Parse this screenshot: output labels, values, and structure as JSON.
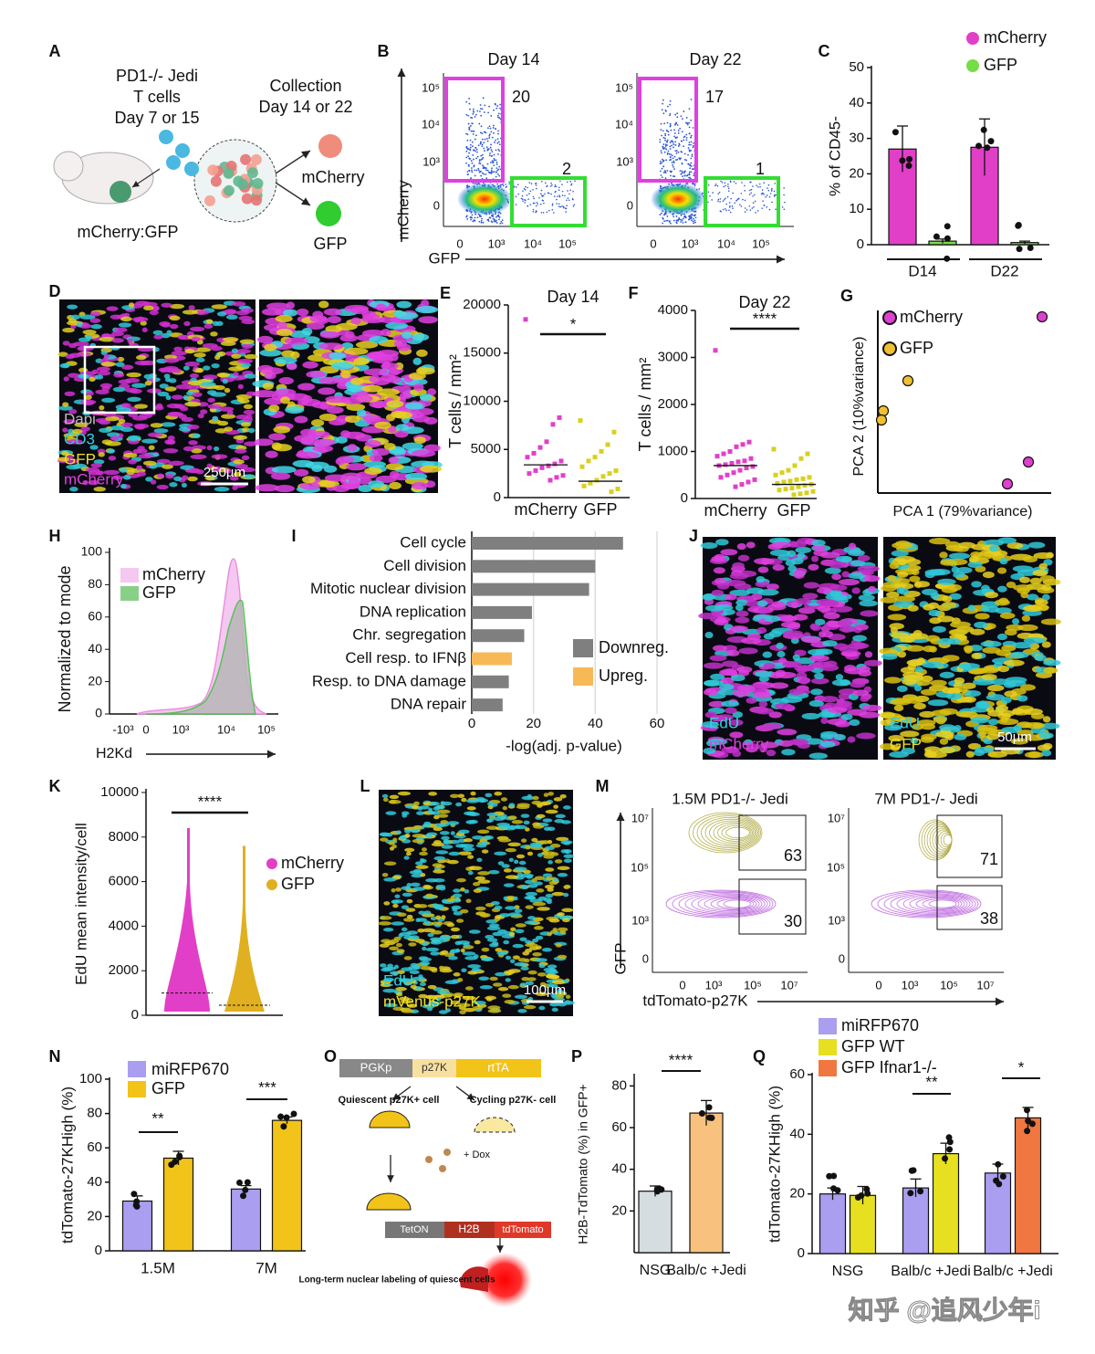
{
  "panel_labels": [
    "A",
    "B",
    "C",
    "D",
    "E",
    "F",
    "G",
    "H",
    "I",
    "J",
    "K",
    "L",
    "M",
    "N",
    "O",
    "P",
    "Q"
  ],
  "A": {
    "texts": [
      "PD1-/- Jedi",
      "T cells",
      "Day 7 or 15",
      "Collection",
      "Day 14 or 22",
      "mCherry",
      "GFP",
      "mCherry:GFP"
    ]
  },
  "B": {
    "titles": [
      "Day 14",
      "Day 22"
    ],
    "gates": [
      20,
      2,
      17,
      1
    ],
    "y_label": "mCherry",
    "x_label": "GFP",
    "yticks": [
      "10⁵",
      "10⁴",
      "10³",
      "0"
    ],
    "xticks": [
      "0",
      "10³",
      "10⁴",
      "10⁵"
    ]
  },
  "C": {
    "type": "bar",
    "y_label": "% of CD45-",
    "groups": [
      "D14",
      "D22"
    ],
    "ylim": [
      0,
      50
    ],
    "yticks": [
      0,
      10,
      20,
      30,
      40,
      50
    ],
    "series": [
      {
        "name": "mCherry",
        "color": "#e23fc8",
        "values": [
          27,
          27.5
        ],
        "errors": [
          6.5,
          8
        ]
      },
      {
        "name": "GFP",
        "color": "#77dd44",
        "values": [
          1,
          0.6
        ],
        "errors": [
          0.6,
          0.4
        ]
      }
    ]
  },
  "D": {
    "channels": [
      "Dapi",
      "CD3",
      "GFP",
      "mCherry"
    ],
    "scale_bar": "250µm"
  },
  "E": {
    "type": "dot",
    "title": "Day 14",
    "y_label": "T cells / mm²",
    "categories": [
      "mCherry",
      "GFP"
    ],
    "colors": [
      "#e23fc8",
      "#d8d020"
    ],
    "ylim": [
      0,
      20000
    ],
    "yticks": [
      0,
      5000,
      10000,
      15000,
      20000
    ],
    "medians": [
      3400,
      1700
    ],
    "points": [
      [
        18500,
        8300,
        7600,
        5800,
        5200,
        4600,
        4200,
        3800,
        3500,
        3300,
        3100,
        2800,
        2500,
        2300,
        2100,
        1800
      ],
      [
        8000,
        6800,
        5500,
        4800,
        4200,
        3800,
        3200,
        2800,
        2500,
        2200,
        1800,
        1500,
        1200,
        900,
        600
      ]
    ],
    "significance": "*"
  },
  "F": {
    "type": "dot",
    "title": "Day 22",
    "y_label": "T cells / mm²",
    "categories": [
      "mCherry",
      "GFP"
    ],
    "colors": [
      "#e23fc8",
      "#d8d020"
    ],
    "ylim": [
      0,
      4000
    ],
    "yticks": [
      0,
      1000,
      2000,
      3000,
      4000
    ],
    "medians": [
      700,
      300
    ],
    "points": [
      [
        3150,
        1200,
        1150,
        1100,
        1000,
        950,
        900,
        850,
        800,
        780,
        750,
        720,
        700,
        680,
        650,
        600,
        550,
        500,
        450,
        400,
        350,
        300,
        250
      ],
      [
        1050,
        950,
        850,
        700,
        600,
        550,
        500,
        450,
        420,
        400,
        370,
        350,
        320,
        300,
        280,
        250,
        220,
        200,
        180,
        150,
        120,
        100,
        80
      ]
    ],
    "significance": "****"
  },
  "G": {
    "legend": [
      "mCherry",
      "GFP"
    ],
    "x_label": "PCA 1 (79%variance)",
    "y_label": "PCA 2 (10%variance)"
  },
  "H": {
    "y_label": "Normalized to mode",
    "x_label": "H2Kd",
    "legend": [
      "mCherry",
      "GFP"
    ],
    "yticks": [
      0,
      20,
      40,
      60,
      80,
      100
    ],
    "xticks": [
      "-10³",
      "0",
      "10³",
      "10⁴",
      "10⁵"
    ]
  },
  "I": {
    "type": "hbar",
    "categories": [
      "Cell cycle",
      "Cell division",
      "Mitotic nuclear division",
      "DNA replication",
      "Chr. segregation",
      "Cell resp. to IFNβ",
      "Resp. to DNA damage",
      "DNA repair"
    ],
    "values": [
      49,
      40,
      38,
      19.5,
      17,
      13,
      12,
      10
    ],
    "colors": [
      "#7f7f7f",
      "#7f7f7f",
      "#7f7f7f",
      "#7f7f7f",
      "#7f7f7f",
      "#f7b955",
      "#7f7f7f",
      "#7f7f7f"
    ],
    "legend": [
      {
        "name": "Downreg.",
        "color": "#7f7f7f"
      },
      {
        "name": "Upreg.",
        "color": "#f7b955"
      }
    ],
    "xlim": [
      0,
      60
    ],
    "xticks": [
      0,
      20,
      40,
      60
    ],
    "x_label": "-log(adj. p-value)"
  },
  "J": {
    "left": [
      "EdU",
      "mCherry"
    ],
    "right": [
      "EdU",
      "GFP"
    ],
    "scale_bar": "50µm"
  },
  "K": {
    "type": "violin",
    "y_label": "EdU mean intensity/cell",
    "legend": [
      "mCherry",
      "GFP"
    ],
    "colors": [
      "#e23fc8",
      "#e0b020"
    ],
    "ylim": [
      0,
      10000
    ],
    "yticks": [
      0,
      2000,
      4000,
      6000,
      8000,
      10000
    ],
    "medians": [
      1000,
      450
    ],
    "significance": "****"
  },
  "L": {
    "channels": [
      "EdU",
      "mVenus-p27K"
    ],
    "scale_bar": "100µm"
  },
  "M": {
    "titles": [
      "1.5M PD1-/- Jedi",
      "7M PD1-/- Jedi"
    ],
    "gates": [
      63,
      30,
      71,
      38
    ],
    "y_label": "GFP",
    "x_label": "tdTomato-p27K",
    "yticks": [
      "10⁷",
      "10⁵",
      "10³",
      "0"
    ],
    "xticks": [
      "0",
      "10³",
      "10⁵",
      "10⁷"
    ]
  },
  "N": {
    "type": "bar",
    "y_label": "tdTomato-27KHigh (%)",
    "groups": [
      "1.5M",
      "7M"
    ],
    "ylim": [
      0,
      100
    ],
    "yticks": [
      0,
      20,
      40,
      60,
      80,
      100
    ],
    "series": [
      {
        "name": "miRFP670",
        "color": "#a99ef0",
        "values": [
          29,
          36
        ],
        "errors": [
          3,
          2
        ]
      },
      {
        "name": "GFP",
        "color": "#f2c318",
        "values": [
          54,
          76
        ],
        "errors": [
          4,
          2
        ]
      }
    ],
    "significance": [
      "**",
      "***"
    ]
  },
  "O": {
    "texts": [
      "PGKp",
      "p27K",
      "rtTA",
      "Quiescent p27K+ cell",
      "Cycling p27K- cell",
      "+ Dox",
      "TetON",
      "H2B",
      "tdTomato",
      "Long-term nuclear labeling of quiescent cells"
    ]
  },
  "P": {
    "type": "bar",
    "y_label": "H2B-TdTomato (%) in GFP+",
    "categories": [
      "NSG",
      "Balb/c +Jedi"
    ],
    "values": [
      29.5,
      67
    ],
    "errors": [
      2.5,
      6
    ],
    "colors": [
      "#d5dde0",
      "#f8c27e"
    ],
    "ylim": [
      0,
      85
    ],
    "yticks": [
      20,
      40,
      60,
      80
    ],
    "significance": "****"
  },
  "Q": {
    "type": "bar",
    "y_label": "tdTomato-27KHigh (%)",
    "groups": [
      "NSG",
      "Balb/c +Jedi",
      "Balb/c +Jedi"
    ],
    "ylim": [
      0,
      60
    ],
    "yticks": [
      0,
      20,
      40,
      60
    ],
    "series": [
      {
        "name": "miRFP670",
        "color": "#a99ef0",
        "values": [
          20,
          22,
          27
        ],
        "errors": [
          2,
          3,
          3
        ]
      },
      {
        "name": "GFP WT",
        "color": "#e6e020",
        "values": [
          19.5,
          33.5,
          null
        ],
        "errors": [
          3,
          3.5,
          null
        ]
      },
      {
        "name": "GFP Ifnar1-/-",
        "color": "#f07840",
        "values": [
          null,
          null,
          45.5
        ],
        "errors": [
          null,
          null,
          3.5
        ]
      }
    ],
    "significance": [
      "**",
      "*"
    ]
  },
  "watermark": "知乎 @追风少年i"
}
